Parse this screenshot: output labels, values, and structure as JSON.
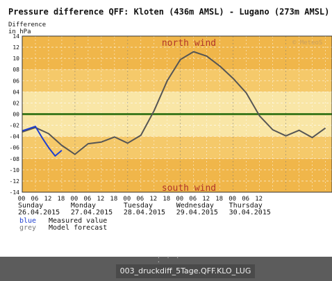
{
  "chart_data": {
    "type": "line",
    "title": "Pressure difference QFF: Kloten (436m AMSL) - Lugano (273m AMSL)",
    "ylabel_line1": "Difference",
    "ylabel_line2": "in hPa",
    "ylim": [
      -14,
      14
    ],
    "y_ticks": [
      "14",
      "12",
      "10",
      "08",
      "06",
      "04",
      "02",
      "00",
      "-02",
      "-04",
      "-06",
      "-08",
      "-10",
      "-12",
      "-14"
    ],
    "x_hour_ticks": [
      "00",
      "06",
      "12",
      "18",
      "00",
      "06",
      "12",
      "18",
      "00",
      "06",
      "12",
      "18",
      "00",
      "06",
      "12",
      "18",
      "00",
      "06",
      "12"
    ],
    "days": [
      {
        "name": "Sunday",
        "date": "26.04.2015"
      },
      {
        "name": "Monday",
        "date": "27.04.2015"
      },
      {
        "name": "Tuesday",
        "date": "28.04.2015"
      },
      {
        "name": "Wednesday",
        "date": "29.04.2015"
      },
      {
        "name": "Thursday",
        "date": "30.04.2015"
      }
    ],
    "annotations": {
      "top": "north wind",
      "bottom": "south wind",
      "watermark": "© MeteoS"
    },
    "legend": [
      {
        "key": "blue",
        "label": "Measured value",
        "color": "#1f3fd0"
      },
      {
        "key": "grey",
        "label": "Model forecast",
        "color": "#555555"
      }
    ],
    "zero_line_color": "#3f7a1f",
    "band_colors": {
      "outer": "#f0b64a",
      "mid": "#f5c96a",
      "inner": "#f9e6a6"
    },
    "series": [
      {
        "name": "Measured value",
        "color": "#1f3fd0",
        "x_hours": [
          0,
          3,
          6,
          9,
          12,
          15,
          18,
          21,
          24
        ],
        "y": [
          -3.0,
          -2.6,
          -2.2,
          -4.2,
          -6.0,
          -7.5,
          -6.5,
          null,
          null
        ]
      },
      {
        "name": "Model forecast",
        "color": "#555555",
        "x_hours": [
          0,
          6,
          12,
          18,
          24,
          30,
          36,
          42,
          48,
          54,
          60,
          66,
          72,
          78,
          84,
          90,
          96,
          102,
          108,
          114,
          120,
          126,
          132,
          138
        ],
        "y": [
          -3.2,
          -2.4,
          -3.5,
          -5.6,
          -7.2,
          -5.3,
          -5.0,
          -4.1,
          -5.2,
          -3.8,
          0.6,
          6.0,
          9.8,
          11.2,
          10.4,
          8.6,
          6.4,
          3.8,
          -0.3,
          -2.8,
          -3.9,
          -2.9,
          -4.2,
          -2.5
        ]
      }
    ]
  },
  "caption": "003_druckdiff_5Tage.QFF.KLO_LUG",
  "dots": "· · · ·"
}
